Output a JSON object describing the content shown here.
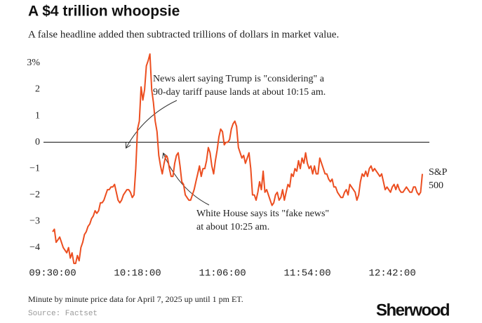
{
  "chart_data": {
    "type": "line",
    "title": "A $4 trillion whoopsie",
    "subtitle": "A false headline added then subtracted trillions of dollars in market value.",
    "footnote": "Minute by minute price data for April 7, 2025 up until 1 pm ET.",
    "source": "Source: Factset",
    "brand": "Sherwood",
    "annotations": [
      {
        "lines": [
          "News alert saying Trump is \"considering\" a",
          "90-day tariff pause lands at about 10:15 am."
        ]
      },
      {
        "lines": [
          "White House says its \"fake news\"",
          "at about 10:25 am."
        ]
      }
    ],
    "x": [
      0,
      1,
      2,
      3,
      4,
      5,
      6,
      7,
      8,
      9,
      10,
      11,
      12,
      13,
      14,
      15,
      16,
      17,
      18,
      19,
      20,
      21,
      22,
      23,
      24,
      25,
      26,
      27,
      28,
      29,
      30,
      31,
      32,
      33,
      34,
      35,
      36,
      37,
      38,
      39,
      40,
      41,
      42,
      43,
      44,
      45,
      46,
      47,
      48,
      49,
      50,
      51,
      52,
      53,
      54,
      55,
      56,
      57,
      58,
      59,
      60,
      61,
      62,
      63,
      64,
      65,
      66,
      67,
      68,
      69,
      70,
      71,
      72,
      73,
      74,
      75,
      76,
      77,
      78,
      79,
      80,
      81,
      82,
      83,
      84,
      85,
      86,
      87,
      88,
      89,
      90,
      91,
      92,
      93,
      94,
      95,
      96,
      97,
      98,
      99,
      100,
      101,
      102,
      103,
      104,
      105,
      106,
      107,
      108,
      109,
      110,
      111,
      112,
      113,
      114,
      115,
      116,
      117,
      118,
      119,
      120,
      121,
      122,
      123,
      124,
      125,
      126,
      127,
      128,
      129,
      130,
      131,
      132,
      133,
      134,
      135,
      136,
      137,
      138,
      139,
      140,
      141,
      142,
      143,
      144,
      145,
      146,
      147,
      148,
      149,
      150,
      151,
      152,
      153,
      154,
      155,
      156,
      157,
      158,
      159,
      160,
      161,
      162,
      163,
      164,
      165,
      166,
      167,
      168,
      169,
      170,
      171,
      172,
      173,
      174,
      175,
      176,
      177,
      178,
      179,
      180,
      181,
      182,
      183,
      184,
      185,
      186,
      187,
      188,
      189,
      190,
      191,
      192,
      193,
      194,
      195,
      196,
      197,
      198,
      199,
      200,
      201,
      202,
      203,
      204,
      205,
      206,
      207,
      208,
      209
    ],
    "series": [
      {
        "name": "S&P 500",
        "color": "#ec4e20",
        "values": [
          -3.4,
          -3.3,
          -3.8,
          -3.7,
          -3.6,
          -3.8,
          -4.0,
          -4.1,
          -4.2,
          -4.0,
          -4.4,
          -4.2,
          -4.6,
          -4.6,
          -4.3,
          -4.5,
          -4.0,
          -3.8,
          -3.5,
          -3.4,
          -3.2,
          -3.1,
          -2.9,
          -2.8,
          -2.6,
          -2.7,
          -2.6,
          -2.3,
          -2.3,
          -2.2,
          -2.0,
          -1.8,
          -1.8,
          -1.7,
          -1.7,
          -1.6,
          -1.9,
          -2.2,
          -2.3,
          -2.2,
          -2.0,
          -1.9,
          -1.8,
          -1.8,
          -1.9,
          -2.1,
          -2.0,
          -1.0,
          0.5,
          0.8,
          2.1,
          1.6,
          2.0,
          2.9,
          3.1,
          3.35,
          2.0,
          1.5,
          0.8,
          0.4,
          -0.5,
          -0.9,
          -1.2,
          -0.8,
          -0.5,
          -0.6,
          -1.0,
          -1.3,
          -1.3,
          -0.8,
          -0.5,
          -0.4,
          -0.9,
          -1.5,
          -1.6,
          -2.0,
          -2.1,
          -2.2,
          -2.2,
          -2.0,
          -1.8,
          -1.5,
          -1.2,
          -0.9,
          -1.3,
          -1.0,
          -1.0,
          -0.7,
          -0.2,
          -0.4,
          -0.9,
          -1.2,
          -0.7,
          -0.3,
          0.2,
          0.5,
          0.4,
          -0.1,
          0.0,
          0.0,
          0.1,
          0.5,
          0.7,
          0.8,
          0.6,
          -0.2,
          -0.4,
          -0.6,
          -0.5,
          -0.8,
          -0.6,
          -0.4,
          -1.0,
          -2.0,
          -2.0,
          -2.2,
          -1.9,
          -1.5,
          -1.8,
          -1.1,
          -1.9,
          -1.8,
          -2.0,
          -2.2,
          -2.4,
          -2.3,
          -2.0,
          -1.9,
          -2.2,
          -2.1,
          -1.8,
          -2.2,
          -1.9,
          -1.6,
          -1.7,
          -1.2,
          -1.3,
          -1.0,
          -1.1,
          -0.7,
          -1.0,
          -0.6,
          -0.8,
          -0.4,
          -0.8,
          -1.0,
          -0.9,
          -1.2,
          -0.9,
          -1.2,
          -1.2,
          -0.6,
          -0.8,
          -1.0,
          -1.2,
          -1.2,
          -1.4,
          -1.5,
          -1.4,
          -1.7,
          -1.7,
          -1.9,
          -2.0,
          -2.1,
          -2.1,
          -1.9,
          -1.8,
          -2.0,
          -1.6,
          -1.7,
          -1.8,
          -1.9,
          -2.2,
          -2.0,
          -1.5,
          -1.2,
          -1.3,
          -1.1,
          -1.3,
          -1.0,
          -0.9,
          -1.1,
          -1.0,
          -1.1,
          -1.2,
          -1.3,
          -1.2,
          -1.5,
          -1.8,
          -1.7,
          -1.8,
          -1.9,
          -1.7,
          -1.6,
          -1.8,
          -1.6,
          -1.8,
          -1.9,
          -1.9,
          -1.8,
          -1.7,
          -1.8,
          -1.9,
          -1.9,
          -1.7,
          -1.7,
          -1.9,
          -2.0,
          -1.9,
          -1.2
        ]
      }
    ],
    "xlim": [
      0,
      209
    ],
    "xticks": [
      {
        "value": 0,
        "label": "09:30:00"
      },
      {
        "value": 48,
        "label": "10:18:00"
      },
      {
        "value": 96,
        "label": "11:06:00"
      },
      {
        "value": 144,
        "label": "11:54:00"
      },
      {
        "value": 192,
        "label": "12:42:00"
      }
    ],
    "ylim": [
      -4.65,
      3.4
    ],
    "yticks": [
      {
        "value": 3,
        "label": "3%"
      },
      2,
      1,
      0,
      {
        "value": -1,
        "label": "−1"
      },
      {
        "value": -2,
        "label": "−2"
      },
      {
        "value": -3,
        "label": "−3"
      },
      {
        "value": -4,
        "label": "−4"
      }
    ],
    "grid": false
  }
}
